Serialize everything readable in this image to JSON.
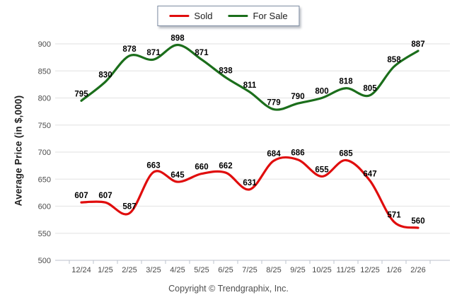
{
  "legend": {
    "items": [
      {
        "label": "Sold",
        "color": "#e00d0d"
      },
      {
        "label": "For Sale",
        "color": "#1b6e1b"
      }
    ]
  },
  "footer": {
    "text": "Copyright © Trendgraphix, Inc."
  },
  "chart_data": {
    "type": "line",
    "title": "",
    "categories": [
      "12/24",
      "1/25",
      "2/25",
      "3/25",
      "4/25",
      "5/25",
      "6/25",
      "7/25",
      "8/25",
      "9/25",
      "10/25",
      "11/25",
      "12/25",
      "1/26",
      "2/26"
    ],
    "series": [
      {
        "name": "Sold",
        "color": "#e00d0d",
        "values": [
          607,
          607,
          587,
          663,
          645,
          660,
          662,
          631,
          684,
          686,
          655,
          685,
          647,
          571,
          560
        ]
      },
      {
        "name": "For Sale",
        "color": "#1b6e1b",
        "values": [
          795,
          830,
          878,
          871,
          898,
          871,
          838,
          811,
          779,
          790,
          800,
          818,
          805,
          858,
          887
        ]
      }
    ],
    "xlabel": "",
    "ylabel": "Average Price (in $,000)",
    "ylim": [
      500,
      900
    ],
    "yticks": [
      500,
      550,
      600,
      650,
      700,
      750,
      800,
      850,
      900
    ],
    "grid": true,
    "smooth": true,
    "data_labels": true,
    "legend_position": "top"
  },
  "style": {
    "gridline_color": "#e7e7e7",
    "axis_color": "#c9ced6",
    "tick_color": "#bcc3cc",
    "tick_label_color": "#4a4a4a",
    "data_label_color": "#000000"
  }
}
